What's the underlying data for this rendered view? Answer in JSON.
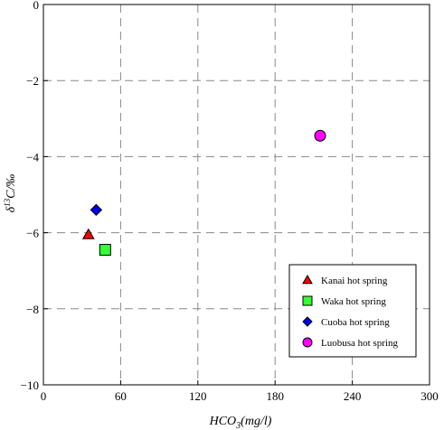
{
  "chart_data": {
    "type": "scatter",
    "title": "",
    "xlabel": "HCO3(mg/l)",
    "xlabel_main": "HCO",
    "xlabel_sub": "3",
    "xlabel_unit": "(mg/l)",
    "ylabel": "δ13C/‰",
    "ylabel_delta": "δ",
    "ylabel_sup": "13",
    "ylabel_rest": "C/‰",
    "xlim": [
      0,
      300
    ],
    "ylim": [
      -10,
      0
    ],
    "xticks": [
      0,
      60,
      120,
      180,
      240,
      300
    ],
    "yticks": [
      0,
      -2,
      -4,
      -6,
      -8,
      -10
    ],
    "xtick_labels": [
      "0",
      "60",
      "120",
      "180",
      "240",
      "300"
    ],
    "ytick_labels": [
      "0",
      "−2",
      "−4",
      "−6",
      "−8",
      "−10"
    ],
    "grid": "dashed",
    "legend_position": "bottom-right",
    "series": [
      {
        "name": "Kanai hot spring",
        "marker": "triangle",
        "color": "#ff0000",
        "points": [
          [
            35,
            -6.05
          ]
        ]
      },
      {
        "name": "Waka hot spring",
        "marker": "square",
        "color": "#33ff33",
        "points": [
          [
            48,
            -6.45
          ]
        ]
      },
      {
        "name": "Cuoba hot spring",
        "marker": "diamond",
        "color": "#0000ff",
        "points": [
          [
            41,
            -5.4
          ]
        ]
      },
      {
        "name": "Luobusa hot spring",
        "marker": "circle",
        "color": "#ff00ff",
        "points": [
          [
            215,
            -3.45
          ]
        ]
      }
    ]
  }
}
